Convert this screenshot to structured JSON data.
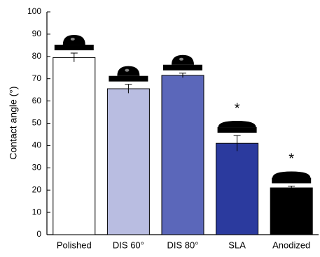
{
  "chart_data": {
    "type": "bar",
    "y_label": "Contact angle (°)",
    "categories": [
      "Polished",
      "DIS 60°",
      "DIS 80°",
      "SLA",
      "Anodized"
    ],
    "values": [
      79.5,
      65.5,
      71.5,
      41,
      21
    ],
    "errors": [
      2,
      2,
      1,
      3.5,
      0.8
    ],
    "colors": [
      "#ffffff",
      "#b9bde1",
      "#5b67ba",
      "#2b3a9e",
      "#000000"
    ],
    "annotations": [
      {
        "category": "SLA",
        "text": "*"
      },
      {
        "category": "Anodized",
        "text": "*"
      }
    ],
    "ylim": [
      0,
      100
    ],
    "yticks": [
      0,
      10,
      20,
      30,
      40,
      50,
      60,
      70,
      80,
      90,
      100
    ]
  }
}
